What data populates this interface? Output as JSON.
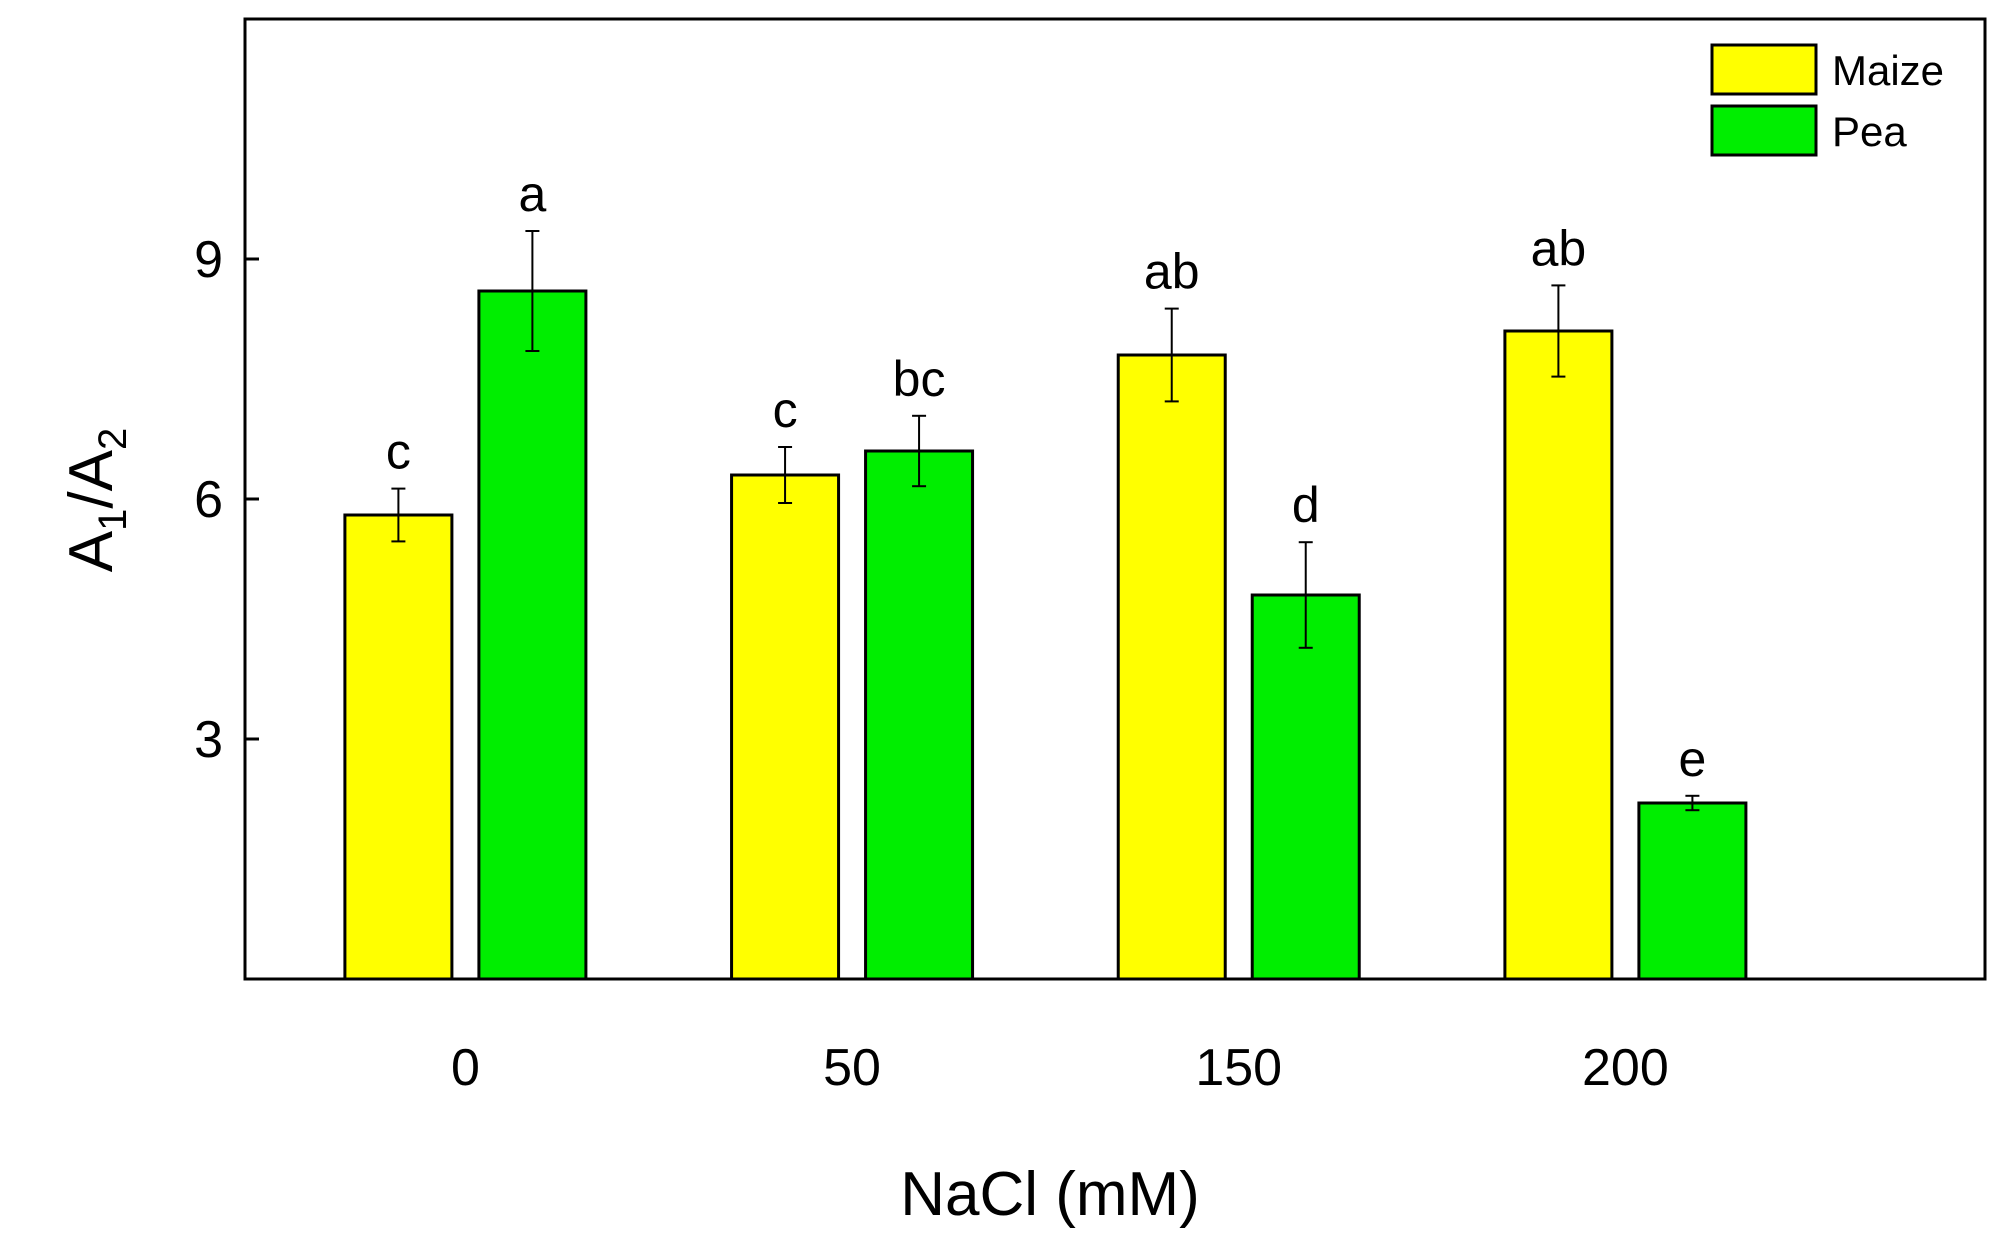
{
  "chart_data": {
    "type": "bar",
    "title": "",
    "xlabel": "NaCl (mM)",
    "ylabel": {
      "base1": "A",
      "sub1": "1",
      "slash": "/A",
      "sub2": "2"
    },
    "categories": [
      "0",
      "50",
      "150",
      "200"
    ],
    "ylim": [
      0,
      12
    ],
    "yticks": [
      3,
      6,
      9
    ],
    "grid": false,
    "legend_position": "top-right",
    "series": [
      {
        "name": "Maize",
        "color": "#ffff00",
        "values": [
          5.8,
          6.3,
          7.8,
          8.1
        ],
        "errors": [
          0.33,
          0.35,
          0.58,
          0.57
        ],
        "labels": [
          "c",
          "c",
          "ab",
          "ab"
        ]
      },
      {
        "name": "Pea",
        "color": "#00ee00",
        "values": [
          8.6,
          6.6,
          4.8,
          2.2
        ],
        "errors": [
          0.75,
          0.44,
          0.66,
          0.09
        ],
        "labels": [
          "a",
          "bc",
          "d",
          "e"
        ]
      }
    ]
  }
}
